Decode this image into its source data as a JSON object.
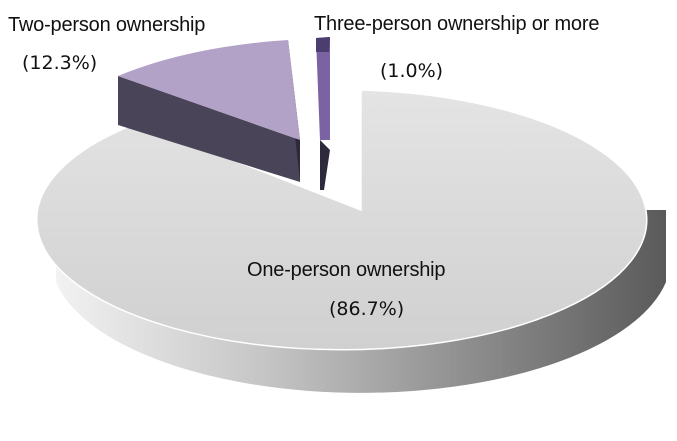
{
  "chart_data": {
    "type": "pie",
    "title": "",
    "slices": [
      {
        "label": "One-person ownership",
        "value_label": "(86.7%)",
        "value": 86.7,
        "color": "#d9d9d9",
        "side_color": "#a8a8a8"
      },
      {
        "label": "Two-person ownership",
        "value_label": "(12.3%)",
        "value": 12.3,
        "color": "#b3a2c7",
        "side_color": "#4a4458"
      },
      {
        "label": "Three-person ownership or more",
        "value_label": "(1.0%)",
        "value": 1.0,
        "color": "#7a62a3",
        "side_color": "#3d3456"
      }
    ],
    "style": "3d-exploded",
    "legend": "none"
  }
}
